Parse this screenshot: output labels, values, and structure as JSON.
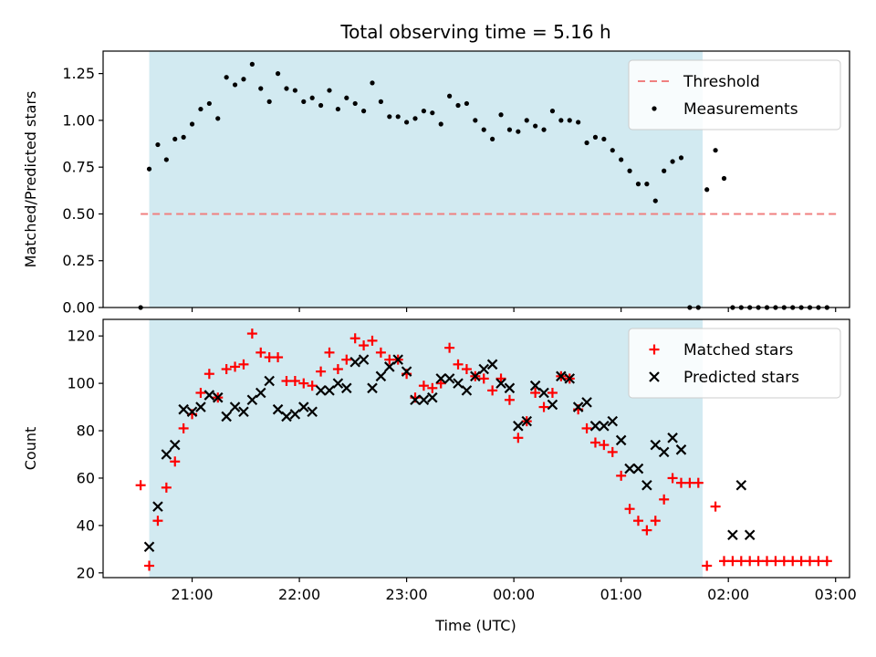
{
  "chart_data": {
    "title": "Total observing time = 5.16 h",
    "xlabel": "Time (UTC)",
    "x_unit": "hours",
    "x_ticks": [
      {
        "value": 21,
        "label": "21:00"
      },
      {
        "value": 22,
        "label": "22:00"
      },
      {
        "value": 23,
        "label": "23:00"
      },
      {
        "value": 24,
        "label": "00:00"
      },
      {
        "value": 25,
        "label": "01:00"
      },
      {
        "value": 26,
        "label": "02:00"
      },
      {
        "value": 27,
        "label": "03:00"
      }
    ],
    "xlim": [
      20.17,
      27.13
    ],
    "observing_window": {
      "start": 20.6,
      "end": 25.76,
      "color": "#add8e6"
    },
    "panels": [
      {
        "type": "scatter",
        "ylabel": "Matched/Predicted stars",
        "ylim": [
          0,
          1.37
        ],
        "y_ticks": [
          0.0,
          0.25,
          0.5,
          0.75,
          1.0,
          1.25
        ],
        "y_tick_labels": [
          "0.00",
          "0.25",
          "0.50",
          "0.75",
          "1.00",
          "1.25"
        ],
        "legend_position": "top-right",
        "threshold": {
          "name": "Threshold",
          "value": 0.5,
          "x_range": [
            20.52,
            27.02
          ],
          "color": "#f08080"
        },
        "series": [
          {
            "name": "Measurements",
            "marker": "dot",
            "color": "#000000",
            "x": [
              20.52,
              20.6,
              20.68,
              20.76,
              20.84,
              20.92,
              21.0,
              21.08,
              21.16,
              21.24,
              21.32,
              21.4,
              21.48,
              21.56,
              21.64,
              21.72,
              21.8,
              21.88,
              21.96,
              22.04,
              22.12,
              22.2,
              22.28,
              22.36,
              22.44,
              22.52,
              22.6,
              22.68,
              22.76,
              22.84,
              22.92,
              23.0,
              23.08,
              23.16,
              23.24,
              23.32,
              23.4,
              23.48,
              23.56,
              23.64,
              23.72,
              23.8,
              23.88,
              23.96,
              24.04,
              24.12,
              24.2,
              24.28,
              24.36,
              24.44,
              24.52,
              24.6,
              24.68,
              24.76,
              24.84,
              24.92,
              25.0,
              25.08,
              25.16,
              25.24,
              25.32,
              25.4,
              25.48,
              25.56,
              25.64,
              25.72,
              25.8,
              25.88,
              25.96,
              26.04,
              26.12,
              26.2,
              26.28,
              26.36,
              26.44,
              26.52,
              26.6,
              26.68,
              26.76,
              26.84,
              26.92
            ],
            "y": [
              0.0,
              0.74,
              0.87,
              0.79,
              0.9,
              0.91,
              0.98,
              1.06,
              1.09,
              1.01,
              1.23,
              1.19,
              1.22,
              1.3,
              1.17,
              1.1,
              1.25,
              1.17,
              1.16,
              1.1,
              1.12,
              1.08,
              1.16,
              1.06,
              1.12,
              1.09,
              1.05,
              1.2,
              1.1,
              1.02,
              1.02,
              0.99,
              1.01,
              1.05,
              1.04,
              0.98,
              1.13,
              1.08,
              1.09,
              1.0,
              0.95,
              0.9,
              1.03,
              0.95,
              0.94,
              1.0,
              0.97,
              0.95,
              1.05,
              1.0,
              1.0,
              0.99,
              0.88,
              0.91,
              0.9,
              0.84,
              0.79,
              0.73,
              0.66,
              0.66,
              0.57,
              0.73,
              0.78,
              0.8,
              0.0,
              0.0,
              0.63,
              0.84,
              0.69,
              0.0,
              0.0,
              0.0,
              0.0,
              0.0,
              0.0,
              0.0,
              0.0,
              0.0,
              0.0,
              0.0,
              0.0
            ]
          }
        ]
      },
      {
        "type": "scatter",
        "ylabel": "Count",
        "ylim": [
          18,
          127
        ],
        "y_ticks": [
          20,
          40,
          60,
          80,
          100,
          120
        ],
        "y_tick_labels": [
          "20",
          "40",
          "60",
          "80",
          "100",
          "120"
        ],
        "legend_position": "top-right",
        "series": [
          {
            "name": "Matched stars",
            "marker": "plus",
            "color": "#ff0000",
            "x": [
              20.52,
              20.6,
              20.68,
              20.76,
              20.84,
              20.92,
              21.0,
              21.08,
              21.16,
              21.24,
              21.32,
              21.4,
              21.48,
              21.56,
              21.64,
              21.72,
              21.8,
              21.88,
              21.96,
              22.04,
              22.12,
              22.2,
              22.28,
              22.36,
              22.44,
              22.52,
              22.6,
              22.68,
              22.76,
              22.84,
              22.92,
              23.0,
              23.08,
              23.16,
              23.24,
              23.32,
              23.4,
              23.48,
              23.56,
              23.64,
              23.72,
              23.8,
              23.88,
              23.96,
              24.04,
              24.12,
              24.2,
              24.28,
              24.36,
              24.44,
              24.52,
              24.6,
              24.68,
              24.76,
              24.84,
              24.92,
              25.0,
              25.08,
              25.16,
              25.24,
              25.32,
              25.4,
              25.48,
              25.56,
              25.64,
              25.72,
              25.8,
              25.88,
              25.96,
              26.04,
              26.12,
              26.2,
              26.28,
              26.36,
              26.44,
              26.52,
              26.6,
              26.68,
              26.76,
              26.84,
              26.92
            ],
            "y": [
              57,
              23,
              42,
              56,
              67,
              81,
              87,
              96,
              104,
              94,
              106,
              107,
              108,
              121,
              113,
              111,
              111,
              101,
              101,
              100,
              99,
              105,
              113,
              106,
              110,
              119,
              116,
              118,
              113,
              110,
              110,
              104,
              94,
              99,
              98,
              100,
              115,
              108,
              106,
              103,
              102,
              97,
              102,
              93,
              77,
              84,
              96,
              90,
              96,
              103,
              102,
              89,
              81,
              75,
              74,
              71,
              61,
              47,
              42,
              38,
              42,
              51,
              60,
              58,
              58,
              58,
              23,
              48,
              25,
              25,
              25,
              25,
              25,
              25,
              25,
              25,
              25,
              25,
              25,
              25,
              25
            ]
          },
          {
            "name": "Predicted stars",
            "marker": "x",
            "color": "#000000",
            "x": [
              20.6,
              20.68,
              20.76,
              20.84,
              20.92,
              21.0,
              21.08,
              21.16,
              21.24,
              21.32,
              21.4,
              21.48,
              21.56,
              21.64,
              21.72,
              21.8,
              21.88,
              21.96,
              22.04,
              22.12,
              22.2,
              22.28,
              22.36,
              22.44,
              22.52,
              22.6,
              22.68,
              22.76,
              22.84,
              22.92,
              23.0,
              23.08,
              23.16,
              23.24,
              23.32,
              23.4,
              23.48,
              23.56,
              23.64,
              23.72,
              23.8,
              23.88,
              23.96,
              24.04,
              24.12,
              24.2,
              24.28,
              24.36,
              24.44,
              24.52,
              24.6,
              24.68,
              24.76,
              24.84,
              24.92,
              25.0,
              25.08,
              25.16,
              25.24,
              25.32,
              25.4,
              25.48,
              25.56,
              26.04,
              26.12,
              26.2
            ],
            "y": [
              31,
              48,
              70,
              74,
              89,
              88,
              90,
              95,
              94,
              86,
              90,
              88,
              93,
              96,
              101,
              89,
              86,
              87,
              90,
              88,
              97,
              97,
              100,
              98,
              109,
              110,
              98,
              103,
              107,
              110,
              105,
              93,
              93,
              94,
              102,
              102,
              100,
              97,
              103,
              106,
              108,
              100,
              98,
              82,
              84,
              99,
              96,
              91,
              103,
              102,
              90,
              92,
              82,
              82,
              84,
              76,
              64,
              64,
              57,
              74,
              71,
              77,
              72,
              36,
              57,
              36
            ]
          }
        ]
      }
    ]
  }
}
